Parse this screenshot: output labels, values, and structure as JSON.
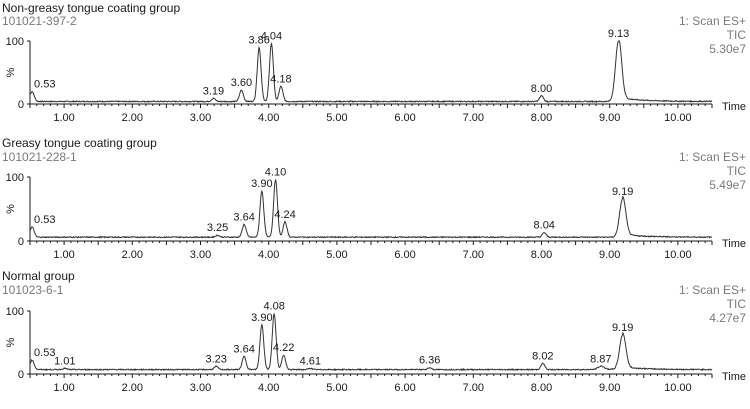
{
  "chart_data": [
    {
      "type": "line",
      "title": "Non-greasy tongue coating group",
      "sample_id": "101021-397-2",
      "scan": "1: Scan ES+",
      "signal": "TIC",
      "intensity": "5.30e7",
      "xlabel": "Time",
      "ylabel": "%",
      "xlim": [
        0.5,
        10.5
      ],
      "ylim": [
        0,
        100
      ],
      "xticks": [
        "1.00",
        "2.00",
        "3.00",
        "4.00",
        "5.00",
        "6.00",
        "7.00",
        "8.00",
        "9.00",
        "10.00"
      ],
      "yticks": [
        "0",
        "100"
      ],
      "baseline": 4,
      "peaks": [
        {
          "x": 0.53,
          "y": 20,
          "label": "0.53"
        },
        {
          "x": 3.19,
          "y": 9,
          "label": "3.19"
        },
        {
          "x": 3.6,
          "y": 22,
          "label": "3.60"
        },
        {
          "x": 3.86,
          "y": 90,
          "label": "3.86"
        },
        {
          "x": 4.04,
          "y": 96,
          "label": "4.04"
        },
        {
          "x": 4.18,
          "y": 28,
          "label": "4.18"
        },
        {
          "x": 8.0,
          "y": 13,
          "label": "8.00"
        },
        {
          "x": 9.13,
          "y": 100,
          "label": "9.13"
        }
      ]
    },
    {
      "type": "line",
      "title": "Greasy tongue coating group",
      "sample_id": "101021-228-1",
      "scan": "1: Scan ES+",
      "signal": "TIC",
      "intensity": "5.49e7",
      "xlabel": "Time",
      "ylabel": "%",
      "xlim": [
        0.5,
        10.5
      ],
      "ylim": [
        0,
        100
      ],
      "xticks": [
        "1.00",
        "2.00",
        "3.00",
        "4.00",
        "5.00",
        "6.00",
        "7.00",
        "8.00",
        "9.00",
        "10.00"
      ],
      "yticks": [
        "0",
        "100"
      ],
      "baseline": 6,
      "peaks": [
        {
          "x": 0.53,
          "y": 22,
          "label": "0.53"
        },
        {
          "x": 3.25,
          "y": 9,
          "label": "3.25"
        },
        {
          "x": 3.64,
          "y": 26,
          "label": "3.64"
        },
        {
          "x": 3.9,
          "y": 78,
          "label": "3.90"
        },
        {
          "x": 4.1,
          "y": 96,
          "label": "4.10"
        },
        {
          "x": 4.24,
          "y": 30,
          "label": "4.24"
        },
        {
          "x": 8.04,
          "y": 13,
          "label": "8.04"
        },
        {
          "x": 9.19,
          "y": 66,
          "label": "9.19"
        }
      ]
    },
    {
      "type": "line",
      "title": "Normal group",
      "sample_id": "101023-6-1",
      "scan": "1: Scan ES+",
      "signal": "TIC",
      "intensity": "4.27e7",
      "xlabel": "Time",
      "ylabel": "%",
      "xlim": [
        0.5,
        10.5
      ],
      "ylim": [
        0,
        100
      ],
      "xticks": [
        "1.00",
        "2.00",
        "3.00",
        "4.00",
        "5.00",
        "6.00",
        "7.00",
        "8.00",
        "9.00",
        "10.00"
      ],
      "yticks": [
        "0",
        "100"
      ],
      "baseline": 7,
      "peaks": [
        {
          "x": 0.53,
          "y": 22,
          "label": "0.53"
        },
        {
          "x": 1.01,
          "y": 9,
          "label": "1.01"
        },
        {
          "x": 3.23,
          "y": 12,
          "label": "3.23"
        },
        {
          "x": 3.64,
          "y": 28,
          "label": "3.64"
        },
        {
          "x": 3.9,
          "y": 78,
          "label": "3.90"
        },
        {
          "x": 4.08,
          "y": 96,
          "label": "4.08"
        },
        {
          "x": 4.22,
          "y": 30,
          "label": "4.22"
        },
        {
          "x": 4.61,
          "y": 9,
          "label": "4.61"
        },
        {
          "x": 6.36,
          "y": 10,
          "label": "6.36"
        },
        {
          "x": 8.02,
          "y": 17,
          "label": "8.02"
        },
        {
          "x": 8.87,
          "y": 12,
          "label": "8.87"
        },
        {
          "x": 9.19,
          "y": 62,
          "label": "9.19"
        }
      ]
    }
  ]
}
